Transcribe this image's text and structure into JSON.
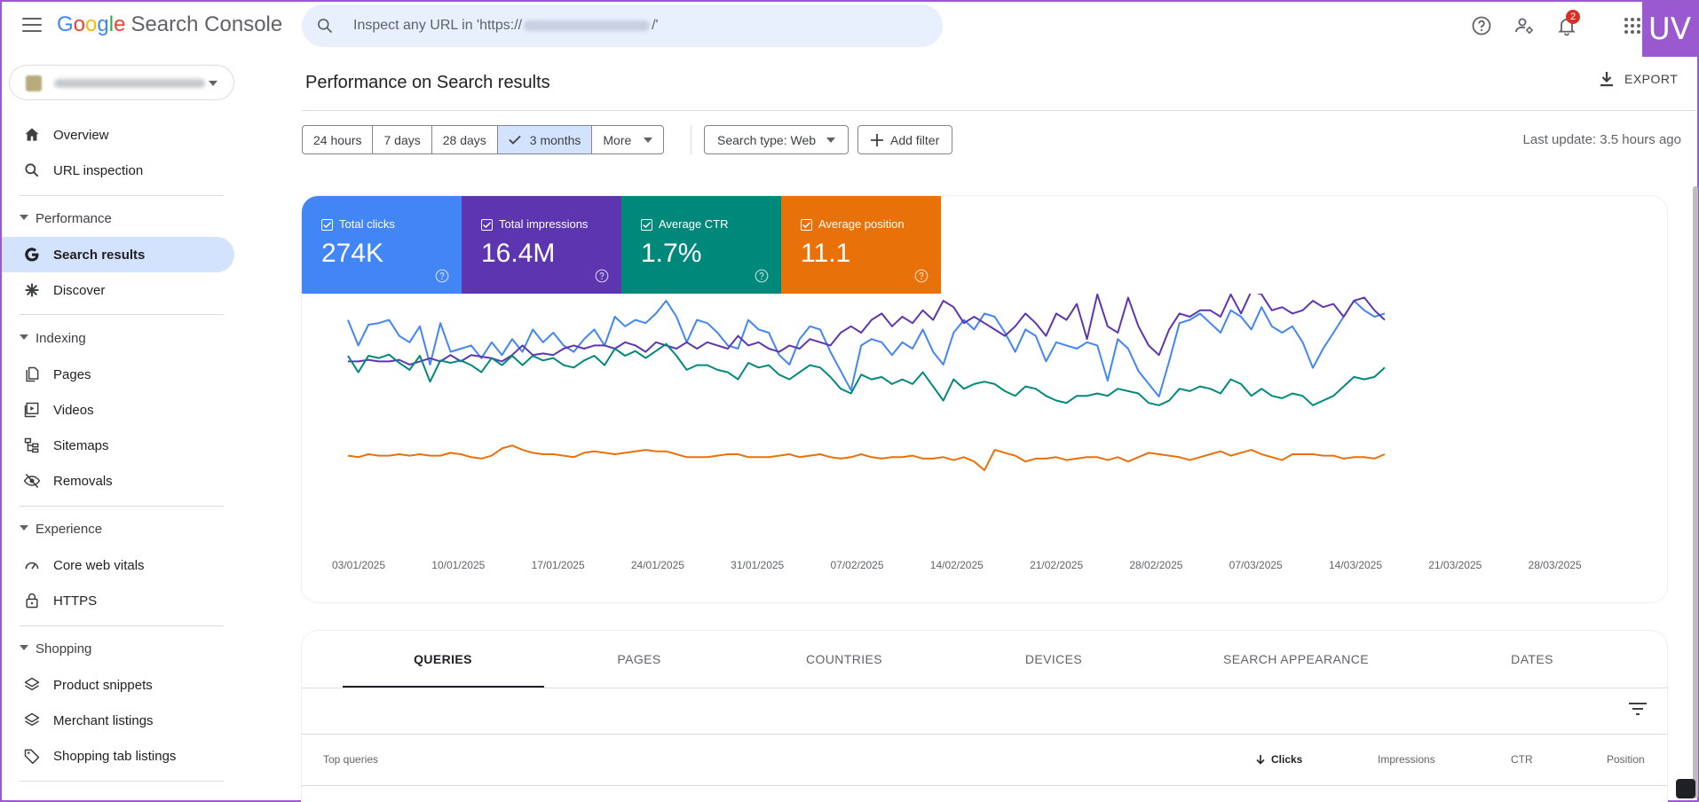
{
  "app": {
    "logo_letters": [
      "G",
      "o",
      "o",
      "g",
      "l",
      "e"
    ],
    "product": "Search Console",
    "uv_label": "UV"
  },
  "search": {
    "placeholder_prefix": "Inspect any URL in 'https://",
    "placeholder_suffix": "/'"
  },
  "notifications": {
    "count": "2"
  },
  "sidebar": {
    "items": [
      {
        "label": "Overview",
        "icon": "home-icon"
      },
      {
        "label": "URL inspection",
        "icon": "search-icon"
      }
    ],
    "sections": [
      {
        "title": "Performance",
        "items": [
          {
            "label": "Search results",
            "icon": "google-g-icon",
            "active": true
          },
          {
            "label": "Discover",
            "icon": "asterisk-icon"
          }
        ]
      },
      {
        "title": "Indexing",
        "items": [
          {
            "label": "Pages",
            "icon": "pages-icon"
          },
          {
            "label": "Videos",
            "icon": "video-icon"
          },
          {
            "label": "Sitemaps",
            "icon": "sitemap-icon"
          },
          {
            "label": "Removals",
            "icon": "eye-off-icon"
          }
        ]
      },
      {
        "title": "Experience",
        "items": [
          {
            "label": "Core web vitals",
            "icon": "gauge-icon"
          },
          {
            "label": "HTTPS",
            "icon": "lock-icon"
          }
        ]
      },
      {
        "title": "Shopping",
        "items": [
          {
            "label": "Product snippets",
            "icon": "layers-icon"
          },
          {
            "label": "Merchant listings",
            "icon": "layers-icon"
          },
          {
            "label": "Shopping tab listings",
            "icon": "tag-icon"
          }
        ]
      }
    ]
  },
  "main": {
    "title": "Performance on Search results",
    "export_label": "EXPORT",
    "date_ranges": [
      "24 hours",
      "7 days",
      "28 days",
      "3 months",
      "More"
    ],
    "selected_range": "3 months",
    "search_type_label": "Search type: Web",
    "add_filter_label": "Add filter",
    "last_update": "Last update: 3.5 hours ago"
  },
  "metrics": [
    {
      "label": "Total clicks",
      "value": "274K",
      "color": "#4285f4"
    },
    {
      "label": "Total impressions",
      "value": "16.4M",
      "color": "#5e35b1"
    },
    {
      "label": "Average CTR",
      "value": "1.7%",
      "color": "#00897b"
    },
    {
      "label": "Average position",
      "value": "11.1",
      "color": "#e8710a"
    }
  ],
  "chart_data": {
    "type": "line",
    "x_tick_labels": [
      "03/01/2025",
      "10/01/2025",
      "17/01/2025",
      "24/01/2025",
      "31/01/2025",
      "07/02/2025",
      "14/02/2025",
      "21/02/2025",
      "28/02/2025",
      "07/03/2025",
      "14/03/2025",
      "21/03/2025",
      "28/03/2025"
    ],
    "x_start": "03/01/2025",
    "y_axis_visible": false,
    "grid": false,
    "legend": "none",
    "series": [
      {
        "name": "Total clicks",
        "color": "#4285f4",
        "values": [
          0.78,
          0.62,
          0.75,
          0.76,
          0.78,
          0.68,
          0.64,
          0.74,
          0.5,
          0.76,
          0.58,
          0.6,
          0.62,
          0.54,
          0.64,
          0.56,
          0.66,
          0.58,
          0.72,
          0.64,
          0.7,
          0.62,
          0.58,
          0.66,
          0.72,
          0.62,
          0.8,
          0.74,
          0.78,
          0.76,
          0.82,
          0.9,
          0.8,
          0.64,
          0.78,
          0.76,
          0.7,
          0.62,
          0.6,
          0.78,
          0.72,
          0.7,
          0.56,
          0.5,
          0.66,
          0.74,
          0.72,
          0.58,
          0.46,
          0.34,
          0.62,
          0.66,
          0.64,
          0.56,
          0.64,
          0.6,
          0.72,
          0.58,
          0.5,
          0.7,
          0.78,
          0.72,
          0.82,
          0.8,
          0.7,
          0.58,
          0.72,
          0.68,
          0.52,
          0.64,
          0.62,
          0.6,
          0.64,
          0.62,
          0.4,
          0.66,
          0.6,
          0.46,
          0.38,
          0.3,
          0.52,
          0.76,
          0.78,
          0.82,
          0.76,
          0.7,
          0.84,
          0.8,
          0.72,
          0.86,
          0.74,
          0.7,
          0.74,
          0.64,
          0.48,
          0.6,
          0.7,
          0.8,
          0.9,
          0.84,
          0.8,
          0.82
        ]
      },
      {
        "name": "Total impressions",
        "color": "#5e35b1",
        "values": [
          0.52,
          0.52,
          0.53,
          0.52,
          0.52,
          0.53,
          0.5,
          0.52,
          0.54,
          0.52,
          0.56,
          0.52,
          0.56,
          0.55,
          0.54,
          0.52,
          0.56,
          0.62,
          0.56,
          0.57,
          0.56,
          0.6,
          0.62,
          0.6,
          0.62,
          0.62,
          0.6,
          0.64,
          0.62,
          0.58,
          0.64,
          0.62,
          0.6,
          0.64,
          0.6,
          0.64,
          0.62,
          0.6,
          0.68,
          0.62,
          0.64,
          0.6,
          0.58,
          0.62,
          0.6,
          0.66,
          0.64,
          0.62,
          0.7,
          0.74,
          0.7,
          0.78,
          0.82,
          0.74,
          0.8,
          0.76,
          0.84,
          0.78,
          0.9,
          0.86,
          0.76,
          0.8,
          0.76,
          0.72,
          0.68,
          0.74,
          0.82,
          0.76,
          0.68,
          0.82,
          0.78,
          0.88,
          0.66,
          0.94,
          0.74,
          0.7,
          0.92,
          0.74,
          0.62,
          0.56,
          0.72,
          0.82,
          0.8,
          0.84,
          0.84,
          0.8,
          0.94,
          0.82,
          0.96,
          0.94,
          0.84,
          0.86,
          0.82,
          0.84,
          0.9,
          0.86,
          0.88,
          0.8,
          0.9,
          0.92,
          0.84,
          0.78
        ]
      },
      {
        "name": "Average CTR",
        "color": "#00897b",
        "values": [
          0.94,
          0.8,
          0.94,
          0.92,
          0.95,
          0.88,
          0.82,
          0.94,
          0.72,
          0.9,
          0.88,
          0.9,
          0.86,
          0.8,
          0.92,
          0.86,
          0.94,
          0.86,
          0.94,
          0.9,
          0.92,
          0.86,
          0.84,
          0.9,
          0.94,
          0.86,
          1.0,
          0.94,
          0.98,
          0.92,
          0.98,
          1.04,
          0.94,
          0.82,
          0.86,
          0.86,
          0.82,
          0.8,
          0.74,
          0.88,
          0.84,
          0.86,
          0.78,
          0.74,
          0.8,
          0.86,
          0.84,
          0.76,
          0.66,
          0.62,
          0.78,
          0.74,
          0.76,
          0.7,
          0.74,
          0.7,
          0.8,
          0.68,
          0.56,
          0.74,
          0.66,
          0.7,
          0.72,
          0.7,
          0.64,
          0.6,
          0.68,
          0.66,
          0.6,
          0.56,
          0.54,
          0.6,
          0.6,
          0.62,
          0.6,
          0.66,
          0.64,
          0.62,
          0.54,
          0.52,
          0.56,
          0.66,
          0.64,
          0.68,
          0.66,
          0.62,
          0.74,
          0.7,
          0.6,
          0.66,
          0.6,
          0.58,
          0.62,
          0.6,
          0.52,
          0.56,
          0.6,
          0.68,
          0.76,
          0.74,
          0.76,
          0.84
        ]
      },
      {
        "name": "Average position",
        "color": "#e8710a",
        "values": [
          0.48,
          0.46,
          0.5,
          0.48,
          0.48,
          0.5,
          0.48,
          0.5,
          0.48,
          0.48,
          0.52,
          0.5,
          0.46,
          0.44,
          0.48,
          0.58,
          0.62,
          0.56,
          0.52,
          0.5,
          0.5,
          0.48,
          0.46,
          0.52,
          0.54,
          0.52,
          0.5,
          0.52,
          0.54,
          0.56,
          0.54,
          0.54,
          0.5,
          0.46,
          0.46,
          0.46,
          0.48,
          0.5,
          0.5,
          0.46,
          0.46,
          0.46,
          0.48,
          0.5,
          0.46,
          0.48,
          0.5,
          0.46,
          0.44,
          0.46,
          0.5,
          0.46,
          0.44,
          0.46,
          0.46,
          0.48,
          0.44,
          0.44,
          0.46,
          0.42,
          0.46,
          0.4,
          0.28,
          0.56,
          0.52,
          0.48,
          0.4,
          0.44,
          0.44,
          0.46,
          0.42,
          0.44,
          0.46,
          0.46,
          0.42,
          0.46,
          0.4,
          0.46,
          0.52,
          0.5,
          0.48,
          0.46,
          0.42,
          0.46,
          0.5,
          0.54,
          0.48,
          0.52,
          0.56,
          0.5,
          0.46,
          0.42,
          0.5,
          0.5,
          0.5,
          0.48,
          0.48,
          0.44,
          0.46,
          0.46,
          0.44,
          0.5
        ]
      }
    ]
  },
  "table": {
    "tabs": [
      "QUERIES",
      "PAGES",
      "COUNTRIES",
      "DEVICES",
      "SEARCH APPEARANCE",
      "DATES"
    ],
    "active_tab": "QUERIES",
    "columns": {
      "first": "Top queries",
      "clicks": "Clicks",
      "impressions": "Impressions",
      "ctr": "CTR",
      "position": "Position"
    }
  }
}
